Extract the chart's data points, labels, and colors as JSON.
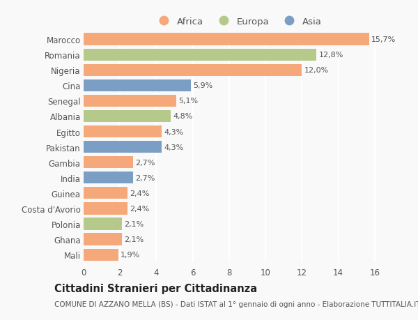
{
  "countries": [
    "Marocco",
    "Romania",
    "Nigeria",
    "Cina",
    "Senegal",
    "Albania",
    "Egitto",
    "Pakistan",
    "Gambia",
    "India",
    "Guinea",
    "Costa d'Avorio",
    "Polonia",
    "Ghana",
    "Mali"
  ],
  "values": [
    15.7,
    12.8,
    12.0,
    5.9,
    5.1,
    4.8,
    4.3,
    4.3,
    2.7,
    2.7,
    2.4,
    2.4,
    2.1,
    2.1,
    1.9
  ],
  "labels": [
    "15,7%",
    "12,8%",
    "12,0%",
    "5,9%",
    "5,1%",
    "4,8%",
    "4,3%",
    "4,3%",
    "2,7%",
    "2,7%",
    "2,4%",
    "2,4%",
    "2,1%",
    "2,1%",
    "1,9%"
  ],
  "continents": [
    "Africa",
    "Europa",
    "Africa",
    "Asia",
    "Africa",
    "Europa",
    "Africa",
    "Asia",
    "Africa",
    "Asia",
    "Africa",
    "Africa",
    "Europa",
    "Africa",
    "Africa"
  ],
  "colors": {
    "Africa": "#F5A87A",
    "Europa": "#B5C98A",
    "Asia": "#7B9FC4"
  },
  "title": "Cittadini Stranieri per Cittadinanza",
  "subtitle": "COMUNE DI AZZANO MELLA (BS) - Dati ISTAT al 1° gennaio di ogni anno - Elaborazione TUTTITALIA.IT",
  "xlim": [
    0,
    17
  ],
  "xticks": [
    0,
    2,
    4,
    6,
    8,
    10,
    12,
    14,
    16
  ],
  "background_color": "#f9f9f9",
  "bar_height": 0.78,
  "title_fontsize": 10.5,
  "subtitle_fontsize": 7.5,
  "tick_fontsize": 8.5,
  "label_fontsize": 8.0,
  "legend_fontsize": 9.5,
  "grid_color": "#ffffff",
  "text_color": "#555555",
  "title_color": "#222222"
}
